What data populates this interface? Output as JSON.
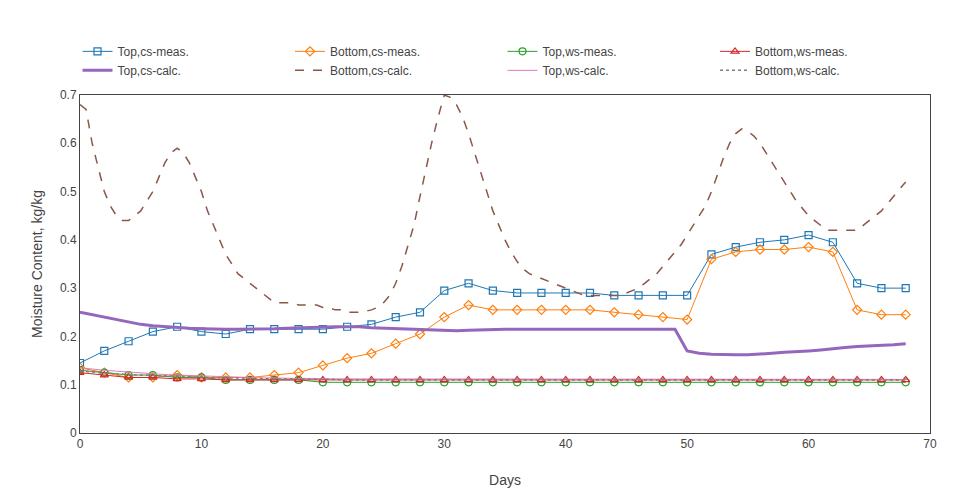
{
  "chart_data": {
    "type": "line",
    "xlabel": "Days",
    "ylabel": "Moisture Content, kg/kg",
    "xlim": [
      0,
      70
    ],
    "ylim": [
      0,
      0.7
    ],
    "xticks": [
      0,
      10,
      20,
      30,
      40,
      50,
      60,
      70
    ],
    "yticks": [
      0,
      0.1,
      0.2,
      0.3,
      0.4,
      0.5,
      0.6,
      0.7
    ],
    "grid": false,
    "legend": "top",
    "series": [
      {
        "name": "Top,cs-meas.",
        "marker": "square",
        "line_style": "solid",
        "x": [
          0,
          2,
          4,
          6,
          8,
          10,
          12,
          14,
          16,
          18,
          20,
          22,
          24,
          26,
          28,
          30,
          32,
          34,
          36,
          38,
          40,
          42,
          44,
          46,
          48,
          50,
          52,
          54,
          56,
          58,
          60,
          62,
          64,
          66,
          68
        ],
        "values": [
          0.145,
          0.17,
          0.19,
          0.21,
          0.22,
          0.21,
          0.205,
          0.215,
          0.215,
          0.215,
          0.215,
          0.22,
          0.225,
          0.24,
          0.25,
          0.295,
          0.31,
          0.295,
          0.29,
          0.29,
          0.29,
          0.29,
          0.285,
          0.285,
          0.285,
          0.285,
          0.37,
          0.385,
          0.395,
          0.4,
          0.41,
          0.395,
          0.31,
          0.3,
          0.3
        ]
      },
      {
        "name": "Bottom,cs-meas.",
        "marker": "diamond",
        "line_style": "solid",
        "x": [
          0,
          2,
          4,
          6,
          8,
          10,
          12,
          14,
          16,
          18,
          20,
          22,
          24,
          26,
          28,
          30,
          32,
          34,
          36,
          38,
          40,
          42,
          44,
          46,
          48,
          50,
          52,
          54,
          56,
          58,
          60,
          62,
          64,
          66,
          68
        ],
        "values": [
          0.135,
          0.125,
          0.115,
          0.115,
          0.12,
          0.115,
          0.115,
          0.115,
          0.12,
          0.125,
          0.14,
          0.155,
          0.165,
          0.185,
          0.205,
          0.24,
          0.265,
          0.255,
          0.255,
          0.255,
          0.255,
          0.255,
          0.25,
          0.245,
          0.24,
          0.235,
          0.36,
          0.375,
          0.38,
          0.38,
          0.385,
          0.375,
          0.255,
          0.245,
          0.245
        ]
      },
      {
        "name": "Top,ws-meas.",
        "marker": "circle",
        "line_style": "solid",
        "x": [
          0,
          2,
          4,
          6,
          8,
          10,
          12,
          14,
          16,
          18,
          20,
          22,
          24,
          26,
          28,
          30,
          32,
          34,
          36,
          38,
          40,
          42,
          44,
          46,
          48,
          50,
          52,
          54,
          56,
          58,
          60,
          62,
          64,
          66,
          68
        ],
        "values": [
          0.13,
          0.125,
          0.12,
          0.12,
          0.115,
          0.115,
          0.11,
          0.11,
          0.11,
          0.11,
          0.105,
          0.105,
          0.105,
          0.105,
          0.105,
          0.105,
          0.105,
          0.105,
          0.105,
          0.105,
          0.105,
          0.105,
          0.105,
          0.105,
          0.105,
          0.105,
          0.105,
          0.105,
          0.105,
          0.105,
          0.105,
          0.105,
          0.105,
          0.105,
          0.105
        ]
      },
      {
        "name": "Bottom,ws-meas.",
        "marker": "triangle-up",
        "line_style": "solid",
        "x": [
          0,
          2,
          4,
          6,
          8,
          10,
          12,
          14,
          16,
          18,
          20,
          22,
          24,
          26,
          28,
          30,
          32,
          34,
          36,
          38,
          40,
          42,
          44,
          46,
          48,
          50,
          52,
          54,
          56,
          58,
          60,
          62,
          64,
          66,
          68
        ],
        "values": [
          0.125,
          0.12,
          0.115,
          0.115,
          0.112,
          0.112,
          0.11,
          0.11,
          0.11,
          0.11,
          0.11,
          0.11,
          0.11,
          0.11,
          0.11,
          0.11,
          0.11,
          0.11,
          0.11,
          0.11,
          0.11,
          0.11,
          0.11,
          0.11,
          0.11,
          0.11,
          0.11,
          0.11,
          0.11,
          0.11,
          0.11,
          0.11,
          0.11,
          0.11,
          0.11
        ]
      },
      {
        "name": "Top,cs-calc.",
        "line_style": "thick",
        "x": [
          0,
          1,
          2,
          3,
          4,
          5,
          6,
          7,
          8,
          9,
          10,
          11,
          12,
          13,
          14,
          15,
          16,
          17,
          18,
          19,
          20,
          21,
          22,
          23,
          24,
          25,
          26,
          27,
          28,
          29,
          30,
          31,
          32,
          33,
          34,
          35,
          36,
          37,
          38,
          39,
          40,
          41,
          42,
          43,
          44,
          45,
          46,
          47,
          48,
          49,
          50,
          51,
          52,
          53,
          54,
          55,
          56,
          57,
          58,
          59,
          60,
          61,
          62,
          63,
          64,
          65,
          66,
          67,
          68
        ],
        "values": [
          0.25,
          0.245,
          0.24,
          0.235,
          0.23,
          0.225,
          0.222,
          0.22,
          0.218,
          0.217,
          0.216,
          0.215,
          0.215,
          0.215,
          0.215,
          0.215,
          0.216,
          0.217,
          0.218,
          0.219,
          0.22,
          0.22,
          0.22,
          0.22,
          0.218,
          0.217,
          0.216,
          0.215,
          0.214,
          0.213,
          0.212,
          0.212,
          0.213,
          0.214,
          0.215,
          0.215,
          0.215,
          0.215,
          0.215,
          0.215,
          0.215,
          0.215,
          0.215,
          0.215,
          0.215,
          0.215,
          0.215,
          0.215,
          0.215,
          0.215,
          0.17,
          0.165,
          0.163,
          0.162,
          0.162,
          0.162,
          0.163,
          0.165,
          0.167,
          0.168,
          0.17,
          0.172,
          0.175,
          0.177,
          0.179,
          0.18,
          0.182,
          0.183,
          0.185
        ]
      },
      {
        "name": "Bottom,cs-calc.",
        "line_style": "dash",
        "x": [
          0,
          0.5,
          1,
          1.5,
          2,
          2.5,
          3,
          3.5,
          4,
          4.5,
          5,
          5.5,
          6,
          6.5,
          7,
          7.5,
          8,
          8.5,
          9,
          9.5,
          10,
          10.5,
          11,
          11.5,
          12,
          12.5,
          13,
          13.5,
          14,
          14.5,
          15,
          15.5,
          16,
          16.5,
          17,
          17.5,
          18,
          18.5,
          19,
          19.5,
          20,
          20.5,
          21,
          21.5,
          22,
          22.5,
          23,
          23.5,
          24,
          24.5,
          25,
          25.5,
          26,
          26.5,
          27,
          27.5,
          28,
          28.5,
          29,
          29.5,
          30,
          30.5,
          31,
          31.5,
          32,
          32.5,
          33,
          33.5,
          34,
          34.5,
          35,
          35.5,
          36,
          36.5,
          37,
          37.5,
          38,
          38.5,
          39,
          39.5,
          40,
          40.5,
          41,
          41.5,
          42,
          42.5,
          43,
          43.5,
          44,
          44.5,
          45,
          45.5,
          46,
          46.5,
          47,
          47.5,
          48,
          48.5,
          49,
          49.5,
          50,
          50.5,
          51,
          51.5,
          52,
          52.5,
          53,
          53.5,
          54,
          54.5,
          55,
          55.5,
          56,
          56.5,
          57,
          57.5,
          58,
          58.5,
          59,
          59.5,
          60,
          60.5,
          61,
          61.5,
          62,
          62.5,
          63,
          63.5,
          64,
          64.5,
          65,
          65.5,
          66,
          66.5,
          67,
          67.5,
          68
        ],
        "values": [
          0.68,
          0.67,
          0.6,
          0.55,
          0.5,
          0.47,
          0.45,
          0.44,
          0.44,
          0.45,
          0.46,
          0.48,
          0.5,
          0.53,
          0.56,
          0.58,
          0.59,
          0.58,
          0.56,
          0.53,
          0.5,
          0.46,
          0.43,
          0.4,
          0.37,
          0.35,
          0.33,
          0.32,
          0.31,
          0.3,
          0.29,
          0.28,
          0.27,
          0.27,
          0.27,
          0.27,
          0.265,
          0.265,
          0.265,
          0.265,
          0.26,
          0.26,
          0.255,
          0.255,
          0.25,
          0.25,
          0.25,
          0.252,
          0.255,
          0.26,
          0.27,
          0.285,
          0.31,
          0.345,
          0.385,
          0.43,
          0.49,
          0.55,
          0.605,
          0.655,
          0.7,
          0.695,
          0.68,
          0.655,
          0.62,
          0.58,
          0.54,
          0.5,
          0.46,
          0.43,
          0.4,
          0.375,
          0.355,
          0.34,
          0.33,
          0.325,
          0.32,
          0.315,
          0.31,
          0.305,
          0.3,
          0.295,
          0.29,
          0.285,
          0.285,
          0.285,
          0.285,
          0.285,
          0.285,
          0.285,
          0.29,
          0.295,
          0.3,
          0.31,
          0.32,
          0.33,
          0.345,
          0.36,
          0.375,
          0.39,
          0.41,
          0.43,
          0.45,
          0.47,
          0.5,
          0.535,
          0.57,
          0.6,
          0.62,
          0.63,
          0.625,
          0.615,
          0.6,
          0.58,
          0.56,
          0.54,
          0.52,
          0.5,
          0.48,
          0.465,
          0.45,
          0.44,
          0.43,
          0.42,
          0.42,
          0.42,
          0.42,
          0.42,
          0.42,
          0.43,
          0.44,
          0.45,
          0.46,
          0.475,
          0.49,
          0.505,
          0.52
        ]
      },
      {
        "name": "Top,ws-calc.",
        "line_style": "solid",
        "x": [
          0,
          1,
          2,
          3,
          4,
          5,
          6,
          7,
          8,
          9,
          10,
          11,
          12,
          13,
          14,
          15,
          16,
          17,
          18,
          19,
          20,
          21,
          22,
          23,
          24,
          25,
          26,
          27,
          28,
          29,
          30,
          31,
          32,
          33,
          34,
          35,
          36,
          37,
          38,
          39,
          40,
          41,
          42,
          43,
          44,
          45,
          46,
          47,
          48,
          49,
          50,
          51,
          52,
          53,
          54,
          55,
          56,
          57,
          58,
          59,
          60,
          61,
          62,
          63,
          64,
          65,
          66,
          67,
          68
        ],
        "values": [
          0.135,
          0.132,
          0.13,
          0.128,
          0.126,
          0.124,
          0.122,
          0.121,
          0.12,
          0.119,
          0.118,
          0.117,
          0.116,
          0.115,
          0.115,
          0.114,
          0.114,
          0.113,
          0.113,
          0.113,
          0.112,
          0.112,
          0.112,
          0.112,
          0.112,
          0.112,
          0.111,
          0.111,
          0.111,
          0.111,
          0.111,
          0.111,
          0.111,
          0.111,
          0.111,
          0.111,
          0.111,
          0.111,
          0.111,
          0.111,
          0.111,
          0.111,
          0.111,
          0.111,
          0.111,
          0.111,
          0.111,
          0.111,
          0.111,
          0.111,
          0.111,
          0.111,
          0.111,
          0.111,
          0.111,
          0.111,
          0.111,
          0.111,
          0.111,
          0.111,
          0.111,
          0.111,
          0.111,
          0.111,
          0.111,
          0.111,
          0.111,
          0.111,
          0.111
        ]
      },
      {
        "name": "Bottom,ws-calc.",
        "line_style": "dot",
        "x": [
          0,
          1,
          2,
          3,
          4,
          5,
          6,
          7,
          8,
          9,
          10,
          11,
          12,
          13,
          14,
          15,
          16,
          17,
          18,
          19,
          20,
          21,
          22,
          23,
          24,
          25,
          26,
          27,
          28,
          29,
          30,
          31,
          32,
          33,
          34,
          35,
          36,
          37,
          38,
          39,
          40,
          41,
          42,
          43,
          44,
          45,
          46,
          47,
          48,
          49,
          50,
          51,
          52,
          53,
          54,
          55,
          56,
          57,
          58,
          59,
          60,
          61,
          62,
          63,
          64,
          65,
          66,
          67,
          68
        ],
        "values": [
          0.128,
          0.126,
          0.124,
          0.122,
          0.121,
          0.12,
          0.119,
          0.118,
          0.117,
          0.116,
          0.115,
          0.115,
          0.114,
          0.114,
          0.113,
          0.113,
          0.112,
          0.112,
          0.112,
          0.111,
          0.111,
          0.111,
          0.11,
          0.11,
          0.11,
          0.11,
          0.11,
          0.11,
          0.11,
          0.11,
          0.11,
          0.11,
          0.11,
          0.11,
          0.11,
          0.11,
          0.11,
          0.11,
          0.11,
          0.11,
          0.11,
          0.11,
          0.11,
          0.11,
          0.11,
          0.11,
          0.11,
          0.11,
          0.11,
          0.11,
          0.11,
          0.11,
          0.11,
          0.11,
          0.11,
          0.11,
          0.11,
          0.11,
          0.11,
          0.11,
          0.11,
          0.11,
          0.11,
          0.11,
          0.11,
          0.11,
          0.11,
          0.11,
          0.11
        ]
      }
    ]
  }
}
